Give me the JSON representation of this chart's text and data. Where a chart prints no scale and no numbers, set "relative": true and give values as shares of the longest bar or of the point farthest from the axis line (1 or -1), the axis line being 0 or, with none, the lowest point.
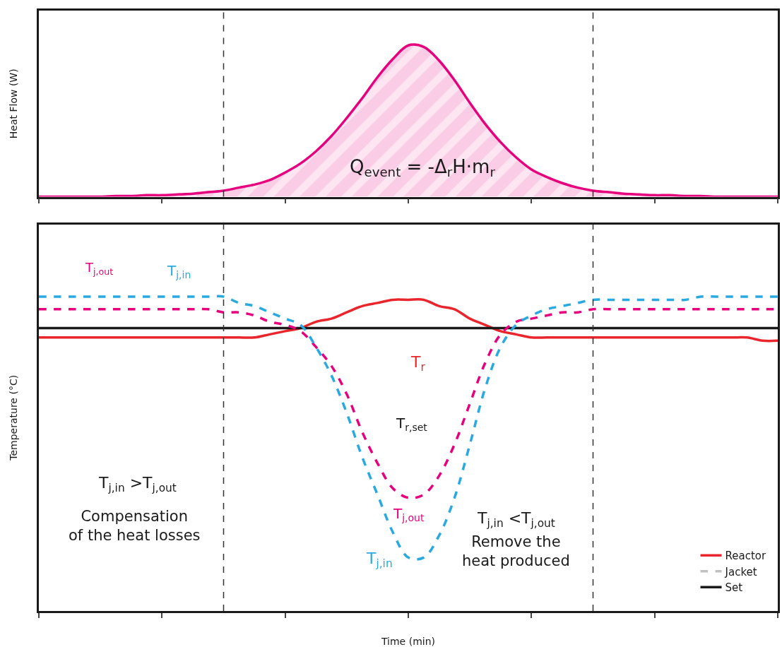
{
  "chart_data": [
    {
      "type": "area",
      "relative": true,
      "ylabel": "Heat Flow (W)",
      "legend": false,
      "categories": [
        null,
        null,
        null,
        null,
        null,
        null,
        null,
        null,
        null,
        null,
        null,
        null,
        null,
        null,
        null,
        null,
        null,
        null,
        null,
        null,
        null,
        null,
        null,
        null,
        null,
        null,
        null,
        null,
        null,
        null,
        null,
        null,
        null,
        null,
        null,
        null,
        null,
        null,
        null,
        null,
        null,
        null,
        null,
        null,
        null,
        null,
        null,
        null,
        null
      ],
      "series": [
        {
          "color": "#e6007e",
          "values": [
            0,
            0,
            0,
            0,
            0,
            0.005,
            0.005,
            0.01,
            0.01,
            0.015,
            0.02,
            0.03,
            0.04,
            0.06,
            0.08,
            0.11,
            0.16,
            0.22,
            0.3,
            0.4,
            0.52,
            0.65,
            0.79,
            0.91,
            1.0,
            0.99,
            0.9,
            0.77,
            0.62,
            0.48,
            0.36,
            0.26,
            0.18,
            0.13,
            0.09,
            0.06,
            0.04,
            0.03,
            0.02,
            0.015,
            0.01,
            0.01,
            0.005,
            0.005,
            0,
            0,
            0,
            0,
            0
          ]
        }
      ],
      "annotations": [
        "Q$_{event}$ = -Δ$_{r}$H·m$_{r}$"
      ]
    },
    {
      "type": "line",
      "relative": true,
      "xlabel": "Time (min)",
      "ylabel": "Temperature (°C)",
      "legend": "bottom right",
      "categories": [
        null,
        null,
        null,
        null,
        null,
        null,
        null,
        null,
        null,
        null,
        null,
        null,
        null,
        null,
        null,
        null,
        null,
        null,
        null,
        null,
        null,
        null,
        null,
        null,
        null,
        null,
        null,
        null,
        null,
        null,
        null,
        null,
        null,
        null,
        null,
        null,
        null,
        null,
        null,
        null,
        null,
        null,
        null,
        null,
        null,
        null,
        null,
        null,
        null
      ],
      "series": [
        {
          "name": "Reactor",
          "color": "#e8262b",
          "line_style": "solid",
          "values": [
            0.87,
            0.87,
            0.87,
            0.87,
            0.87,
            0.87,
            0.87,
            0.87,
            0.87,
            0.87,
            0.87,
            0.87,
            0.87,
            0.87,
            0.87,
            0.88,
            0.89,
            0.9,
            0.92,
            0.93,
            0.95,
            0.97,
            0.98,
            0.99,
            0.99,
            0.99,
            0.97,
            0.96,
            0.93,
            0.91,
            0.89,
            0.88,
            0.87,
            0.87,
            0.87,
            0.87,
            0.87,
            0.87,
            0.87,
            0.87,
            0.87,
            0.87,
            0.87,
            0.87,
            0.87,
            0.87,
            0.87,
            0.86,
            0.86
          ]
        },
        {
          "name": "Jacket",
          "color": "#c0c0c0",
          "line_style": "dashed",
          "values": [
            null,
            null,
            null,
            null,
            null,
            null,
            null,
            null,
            null,
            null,
            null,
            null,
            null,
            null,
            null,
            null,
            null,
            null,
            null,
            null,
            null,
            null,
            null,
            null,
            null,
            null,
            null,
            null,
            null,
            null,
            null,
            null,
            null,
            null,
            null,
            null,
            null,
            null,
            null,
            null,
            null,
            null,
            null,
            null,
            null,
            null,
            null,
            null,
            null
          ]
        },
        {
          "name": "Set",
          "color": "#1a1a1a",
          "line_style": "solid",
          "values": [
            0.9,
            0.9,
            0.9,
            0.9,
            0.9,
            0.9,
            0.9,
            0.9,
            0.9,
            0.9,
            0.9,
            0.9,
            0.9,
            0.9,
            0.9,
            0.9,
            0.9,
            0.9,
            0.9,
            0.9,
            0.9,
            0.9,
            0.9,
            0.9,
            0.9,
            0.9,
            0.9,
            0.9,
            0.9,
            0.9,
            0.9,
            0.9,
            0.9,
            0.9,
            0.9,
            0.9,
            0.9,
            0.9,
            0.9,
            0.9,
            0.9,
            0.9,
            0.9,
            0.9,
            0.9,
            0.9,
            0.9,
            0.9,
            0.9
          ]
        },
        {
          "color": "#e6007e",
          "line_style": "dashed",
          "values": [
            0.96,
            0.96,
            0.96,
            0.96,
            0.96,
            0.96,
            0.96,
            0.96,
            0.96,
            0.96,
            0.96,
            0.96,
            0.95,
            0.95,
            0.94,
            0.92,
            0.91,
            0.89,
            0.84,
            0.78,
            0.69,
            0.57,
            0.47,
            0.39,
            0.36,
            0.37,
            0.43,
            0.53,
            0.66,
            0.79,
            0.88,
            0.92,
            0.93,
            0.94,
            0.95,
            0.95,
            0.96,
            0.96,
            0.96,
            0.96,
            0.96,
            0.96,
            0.96,
            0.96,
            0.96,
            0.96,
            0.96,
            0.96,
            0.96
          ]
        },
        {
          "color": "#29a9e0",
          "line_style": "dashed",
          "values": [
            1.0,
            1.0,
            1.0,
            1.0,
            1.0,
            1.0,
            1.0,
            1.0,
            1.0,
            1.0,
            1.0,
            1.0,
            1.0,
            0.98,
            0.97,
            0.95,
            0.93,
            0.91,
            0.84,
            0.75,
            0.63,
            0.49,
            0.37,
            0.25,
            0.17,
            0.17,
            0.24,
            0.36,
            0.53,
            0.71,
            0.84,
            0.91,
            0.94,
            0.96,
            0.97,
            0.98,
            0.99,
            0.99,
            0.99,
            0.99,
            0.99,
            0.99,
            0.99,
            1.0,
            1.0,
            1.0,
            1.0,
            1.0,
            1.0
          ]
        }
      ],
      "annotations": [
        "T$_{j,out}$",
        "T$_{j,in}$",
        "T$_{r}$",
        "T$_{r,set}$",
        "T$_{j,out}$",
        "T$_{j,in}$",
        "T$_{j,in}$ >T$_{j,out}$",
        "Compensation\nof the heat losses",
        "T$_{j,in}$ <T$_{j,out}$",
        "Remove the\nheat produced"
      ]
    }
  ]
}
